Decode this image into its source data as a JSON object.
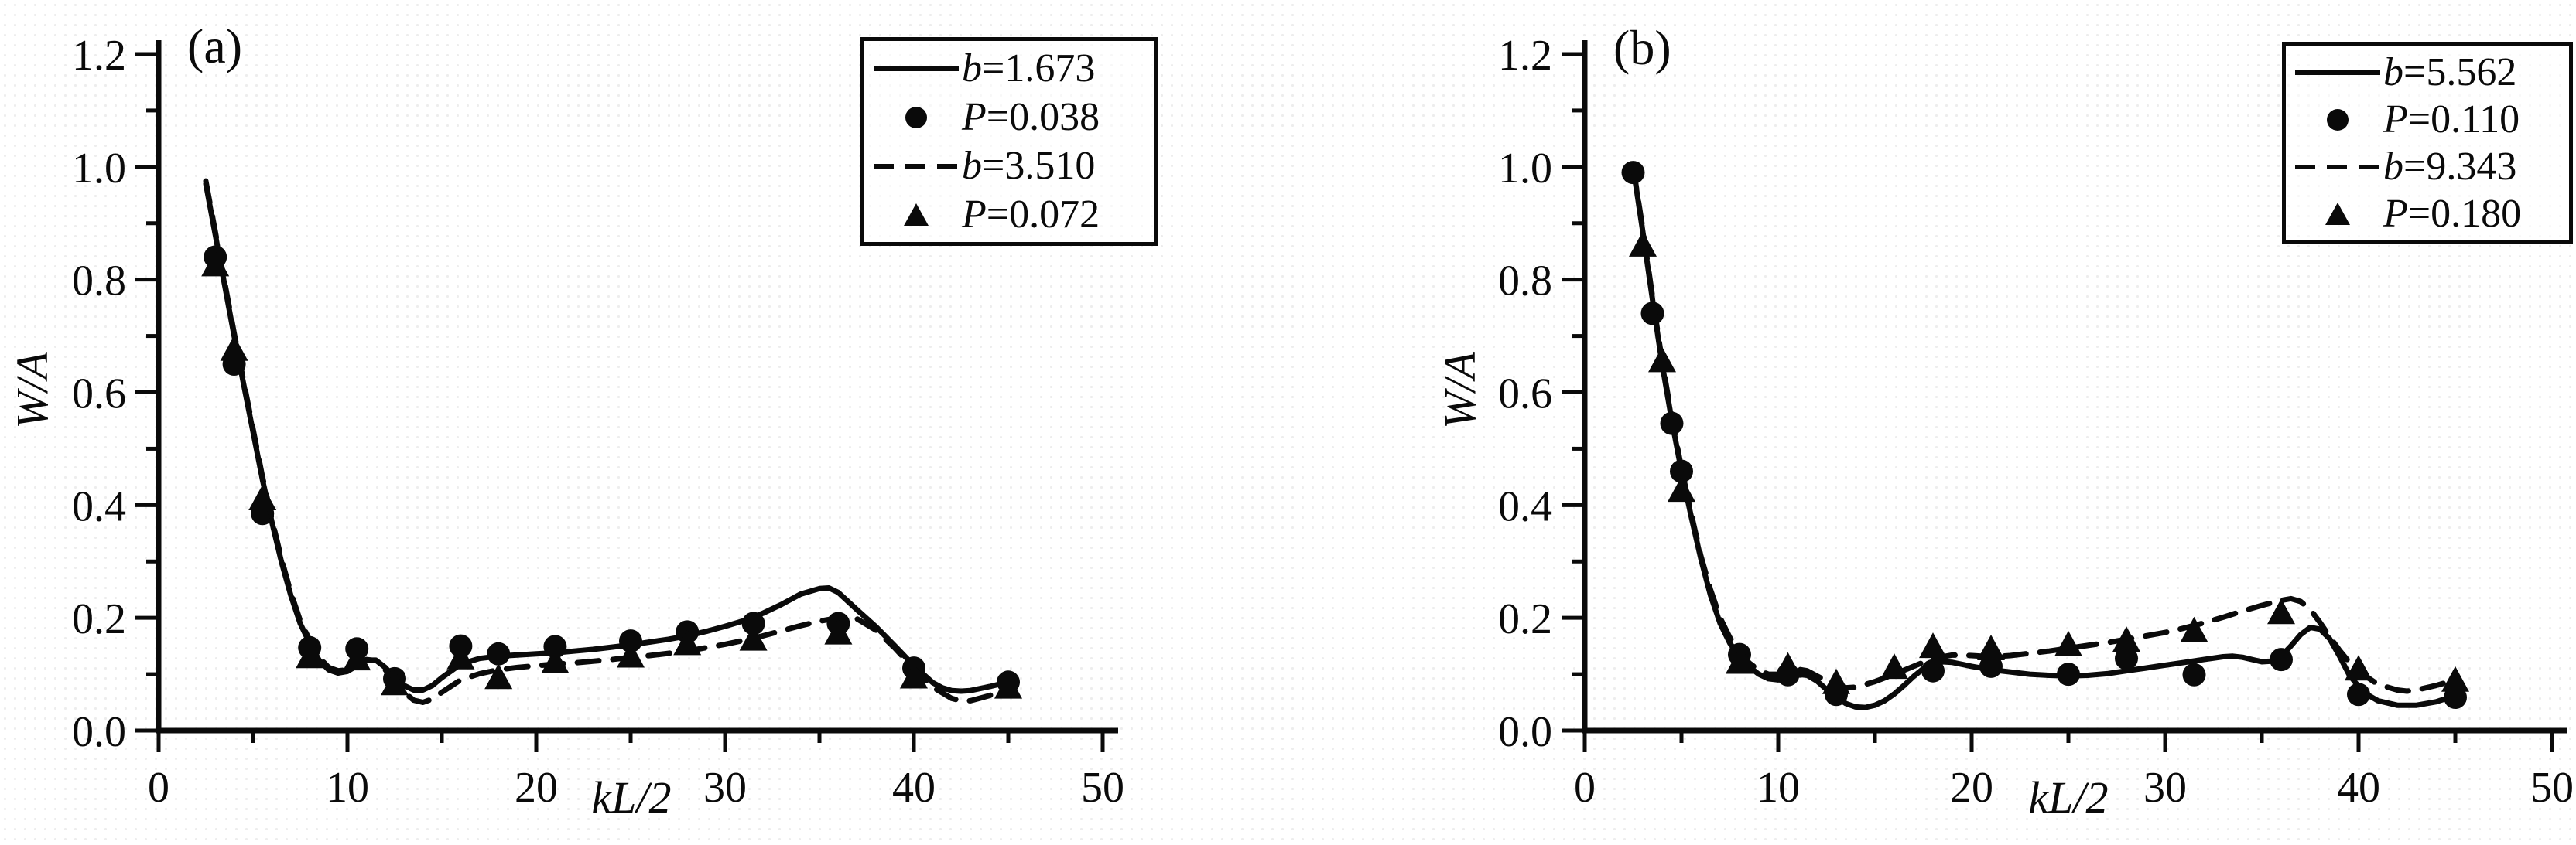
{
  "figure": {
    "panels": [
      "(a)",
      "(b)"
    ]
  },
  "chart_data": [
    {
      "type": "line",
      "panel_label": "(a)",
      "xlabel": "kL/2",
      "ylabel": "W/A",
      "xlim": [
        0,
        50
      ],
      "ylim": [
        0,
        1.2
      ],
      "grid": false,
      "legend_position": "top-right",
      "xticks": {
        "major": [
          0,
          10,
          20,
          30,
          40,
          50
        ],
        "minor": [
          5,
          15,
          25,
          35,
          45
        ],
        "labels": [
          "0",
          "10",
          "20",
          "30",
          "40",
          "50"
        ]
      },
      "yticks": {
        "major": [
          0,
          0.2,
          0.4,
          0.6,
          0.8,
          1.0,
          1.2
        ],
        "minor": [
          0.1,
          0.3,
          0.5,
          0.7,
          0.9,
          1.1
        ],
        "labels": [
          "0.0",
          "0.2",
          "0.4",
          "0.6",
          "0.8",
          "1.0",
          "1.2"
        ]
      },
      "legend": [
        {
          "marker": "solid-line",
          "var": "b",
          "value": "=1.673"
        },
        {
          "marker": "circle",
          "var": "P",
          "value": "=0.038"
        },
        {
          "marker": "dashed-line",
          "var": "b",
          "value": "=3.510"
        },
        {
          "marker": "triangle",
          "var": "P",
          "value": "=0.072"
        }
      ],
      "series": [
        {
          "name": "b=1.673",
          "style": "solid",
          "x": [
            2.5,
            3,
            3.5,
            4,
            4.5,
            5,
            5.5,
            6,
            6.5,
            7,
            7.5,
            8,
            8.5,
            9,
            9.5,
            10,
            10.5,
            11,
            11.5,
            12,
            12.5,
            13,
            13.5,
            14,
            14.5,
            15,
            16,
            17,
            18,
            19,
            20,
            21,
            22,
            23,
            24,
            25,
            26,
            27,
            28,
            29,
            30,
            31,
            32,
            33,
            34,
            35,
            35.5,
            36,
            37,
            38,
            39,
            40,
            41,
            41.5,
            42,
            42.5,
            43,
            44,
            45
          ],
          "y": [
            0.97,
            0.88,
            0.79,
            0.7,
            0.615,
            0.53,
            0.445,
            0.37,
            0.3,
            0.24,
            0.19,
            0.155,
            0.125,
            0.108,
            0.102,
            0.105,
            0.115,
            0.125,
            0.125,
            0.112,
            0.094,
            0.08,
            0.072,
            0.072,
            0.08,
            0.094,
            0.118,
            0.128,
            0.132,
            0.134,
            0.136,
            0.138,
            0.141,
            0.144,
            0.148,
            0.152,
            0.157,
            0.162,
            0.168,
            0.176,
            0.185,
            0.195,
            0.208,
            0.224,
            0.242,
            0.252,
            0.253,
            0.245,
            0.214,
            0.184,
            0.15,
            0.115,
            0.085,
            0.076,
            0.071,
            0.07,
            0.071,
            0.078,
            0.086
          ]
        },
        {
          "name": "P=0.038",
          "style": "scatter-circle",
          "x": [
            3,
            4,
            5.5,
            8,
            10.5,
            12.5,
            16,
            18,
            21,
            25,
            28,
            31.5,
            36,
            40,
            45
          ],
          "y": [
            0.84,
            0.65,
            0.385,
            0.147,
            0.145,
            0.092,
            0.15,
            0.136,
            0.149,
            0.159,
            0.175,
            0.19,
            0.19,
            0.111,
            0.086
          ]
        },
        {
          "name": "b=3.510",
          "style": "dashed",
          "x": [
            2.5,
            3,
            3.5,
            4,
            4.5,
            5,
            5.5,
            6,
            6.5,
            7,
            7.5,
            8,
            8.5,
            9,
            9.5,
            10,
            10.5,
            11,
            11.5,
            12,
            12.5,
            13,
            13.5,
            14,
            14.5,
            15,
            16,
            17,
            18,
            19,
            20,
            21,
            22,
            23,
            24,
            25,
            26,
            27,
            28,
            29,
            30,
            31,
            32,
            33,
            34,
            35,
            36,
            36.5,
            37,
            38,
            39,
            40,
            41,
            42,
            42.5,
            43,
            44,
            45
          ],
          "y": [
            0.975,
            0.885,
            0.795,
            0.705,
            0.62,
            0.535,
            0.45,
            0.375,
            0.305,
            0.245,
            0.195,
            0.16,
            0.13,
            0.112,
            0.106,
            0.108,
            0.117,
            0.126,
            0.124,
            0.108,
            0.088,
            0.068,
            0.054,
            0.05,
            0.056,
            0.068,
            0.09,
            0.101,
            0.108,
            0.112,
            0.115,
            0.118,
            0.12,
            0.123,
            0.126,
            0.13,
            0.133,
            0.137,
            0.141,
            0.147,
            0.153,
            0.16,
            0.168,
            0.177,
            0.186,
            0.194,
            0.2,
            0.202,
            0.198,
            0.178,
            0.146,
            0.11,
            0.077,
            0.057,
            0.053,
            0.053,
            0.062,
            0.078
          ]
        },
        {
          "name": "P=0.072",
          "style": "scatter-triangle",
          "x": [
            3,
            4,
            5.5,
            8,
            10.5,
            12.5,
            16,
            18,
            21,
            25,
            28,
            31.5,
            36,
            40,
            45
          ],
          "y": [
            0.825,
            0.675,
            0.41,
            0.13,
            0.126,
            0.082,
            0.128,
            0.093,
            0.121,
            0.131,
            0.153,
            0.161,
            0.172,
            0.094,
            0.076
          ]
        }
      ]
    },
    {
      "type": "line",
      "panel_label": "(b)",
      "xlabel": "kL/2",
      "ylabel": "W/A",
      "xlim": [
        0,
        50
      ],
      "ylim": [
        0,
        1.2
      ],
      "grid": false,
      "legend_position": "top-right",
      "xticks": {
        "major": [
          0,
          10,
          20,
          30,
          40,
          50
        ],
        "minor": [
          5,
          15,
          25,
          35,
          45
        ],
        "labels": [
          "0",
          "10",
          "20",
          "30",
          "40",
          "50"
        ]
      },
      "yticks": {
        "major": [
          0,
          0.2,
          0.4,
          0.6,
          0.8,
          1.0,
          1.2
        ],
        "minor": [
          0.1,
          0.3,
          0.5,
          0.7,
          0.9,
          1.1
        ],
        "labels": [
          "0.0",
          "0.2",
          "0.4",
          "0.6",
          "0.8",
          "1.0",
          "1.2"
        ]
      },
      "legend": [
        {
          "marker": "solid-line",
          "var": "b",
          "value": "=5.562"
        },
        {
          "marker": "circle",
          "var": "P",
          "value": "=0.110"
        },
        {
          "marker": "dashed-line",
          "var": "b",
          "value": "=9.343"
        },
        {
          "marker": "triangle",
          "var": "P",
          "value": "=0.180"
        }
      ],
      "series": [
        {
          "name": "b=5.562",
          "style": "solid",
          "x": [
            2.5,
            3,
            3.5,
            4,
            4.5,
            5,
            5.5,
            6,
            6.5,
            7,
            7.5,
            8,
            8.5,
            9,
            9.5,
            10,
            10.5,
            11,
            11.5,
            12,
            12.5,
            13,
            13.5,
            14,
            14.5,
            15,
            15.5,
            16,
            16.5,
            17,
            17.5,
            18,
            18.5,
            19,
            20,
            21,
            22,
            23,
            24,
            25,
            26,
            27,
            28,
            29,
            30,
            31,
            32,
            33,
            33.5,
            34,
            34.5,
            35,
            35.5,
            36,
            36.5,
            37,
            37.5,
            38,
            38.5,
            39,
            39.5,
            40,
            40.5,
            41,
            42,
            43,
            44,
            45
          ],
          "y": [
            1.0,
            0.885,
            0.765,
            0.65,
            0.55,
            0.46,
            0.38,
            0.305,
            0.24,
            0.19,
            0.155,
            0.132,
            0.113,
            0.1,
            0.092,
            0.09,
            0.094,
            0.1,
            0.098,
            0.088,
            0.073,
            0.059,
            0.048,
            0.042,
            0.041,
            0.045,
            0.053,
            0.065,
            0.08,
            0.096,
            0.11,
            0.119,
            0.122,
            0.121,
            0.114,
            0.108,
            0.104,
            0.1,
            0.098,
            0.097,
            0.098,
            0.101,
            0.106,
            0.111,
            0.116,
            0.121,
            0.126,
            0.131,
            0.132,
            0.13,
            0.126,
            0.122,
            0.123,
            0.132,
            0.15,
            0.17,
            0.183,
            0.18,
            0.163,
            0.133,
            0.1,
            0.078,
            0.063,
            0.053,
            0.045,
            0.045,
            0.051,
            0.062
          ]
        },
        {
          "name": "P=0.110",
          "style": "scatter-circle",
          "x": [
            2.5,
            3.5,
            4.5,
            5,
            8,
            10.5,
            13,
            18,
            21,
            25,
            28,
            31.5,
            36,
            40,
            45
          ],
          "y": [
            0.99,
            0.74,
            0.545,
            0.46,
            0.135,
            0.099,
            0.064,
            0.106,
            0.114,
            0.1,
            0.128,
            0.099,
            0.126,
            0.064,
            0.059
          ]
        },
        {
          "name": "b=9.343",
          "style": "dashed",
          "x": [
            2.5,
            3,
            3.5,
            4,
            4.5,
            5,
            5.5,
            6,
            6.5,
            7,
            7.5,
            8,
            8.5,
            9,
            9.5,
            10,
            10.5,
            11,
            11.5,
            12,
            12.5,
            13,
            13.5,
            14,
            15,
            16,
            17,
            18,
            19,
            20,
            21,
            22,
            23,
            24,
            25,
            26,
            27,
            28,
            29,
            30,
            31,
            32,
            33,
            34,
            35,
            36,
            36.5,
            37,
            37.5,
            38,
            38.5,
            39,
            39.5,
            40,
            41,
            42,
            42.5,
            43,
            44,
            45
          ],
          "y": [
            1.0,
            0.89,
            0.77,
            0.655,
            0.555,
            0.465,
            0.385,
            0.31,
            0.25,
            0.2,
            0.165,
            0.14,
            0.12,
            0.107,
            0.1,
            0.1,
            0.104,
            0.109,
            0.106,
            0.097,
            0.088,
            0.08,
            0.076,
            0.077,
            0.087,
            0.1,
            0.114,
            0.128,
            0.134,
            0.133,
            0.131,
            0.133,
            0.137,
            0.141,
            0.146,
            0.151,
            0.156,
            0.162,
            0.168,
            0.174,
            0.182,
            0.191,
            0.201,
            0.212,
            0.222,
            0.231,
            0.234,
            0.229,
            0.215,
            0.192,
            0.167,
            0.143,
            0.122,
            0.105,
            0.082,
            0.072,
            0.07,
            0.072,
            0.08,
            0.09
          ]
        },
        {
          "name": "P=0.180",
          "style": "scatter-triangle",
          "x": [
            3,
            4,
            5,
            8,
            10.5,
            13,
            16,
            18,
            21,
            25,
            28,
            31.5,
            36,
            40,
            45
          ],
          "y": [
            0.86,
            0.655,
            0.425,
            0.12,
            0.113,
            0.084,
            0.111,
            0.148,
            0.144,
            0.151,
            0.159,
            0.176,
            0.208,
            0.108,
            0.088
          ]
        }
      ]
    }
  ]
}
